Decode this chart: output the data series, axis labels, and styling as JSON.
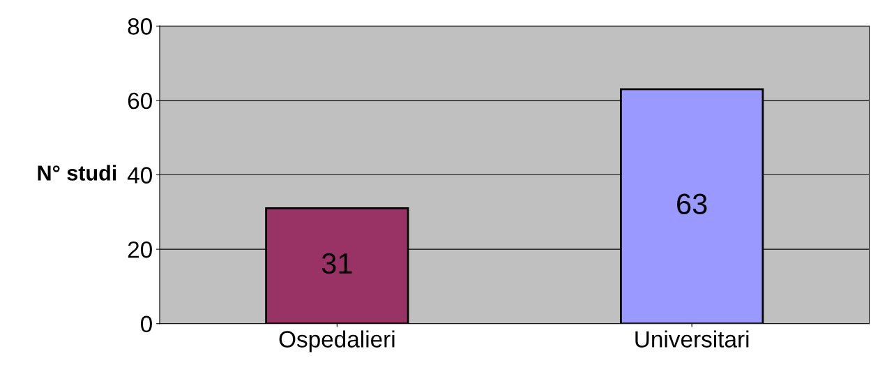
{
  "chart_data": {
    "type": "bar",
    "ylabel": "N° studi",
    "categories": [
      "Ospedalieri",
      "Universitari"
    ],
    "values": [
      31,
      63
    ],
    "colors": [
      "#993366",
      "#9999ff"
    ],
    "ylim": [
      0,
      80
    ],
    "yticks": [
      0,
      20,
      40,
      60,
      80
    ],
    "grid": "y",
    "data_labels": true
  }
}
